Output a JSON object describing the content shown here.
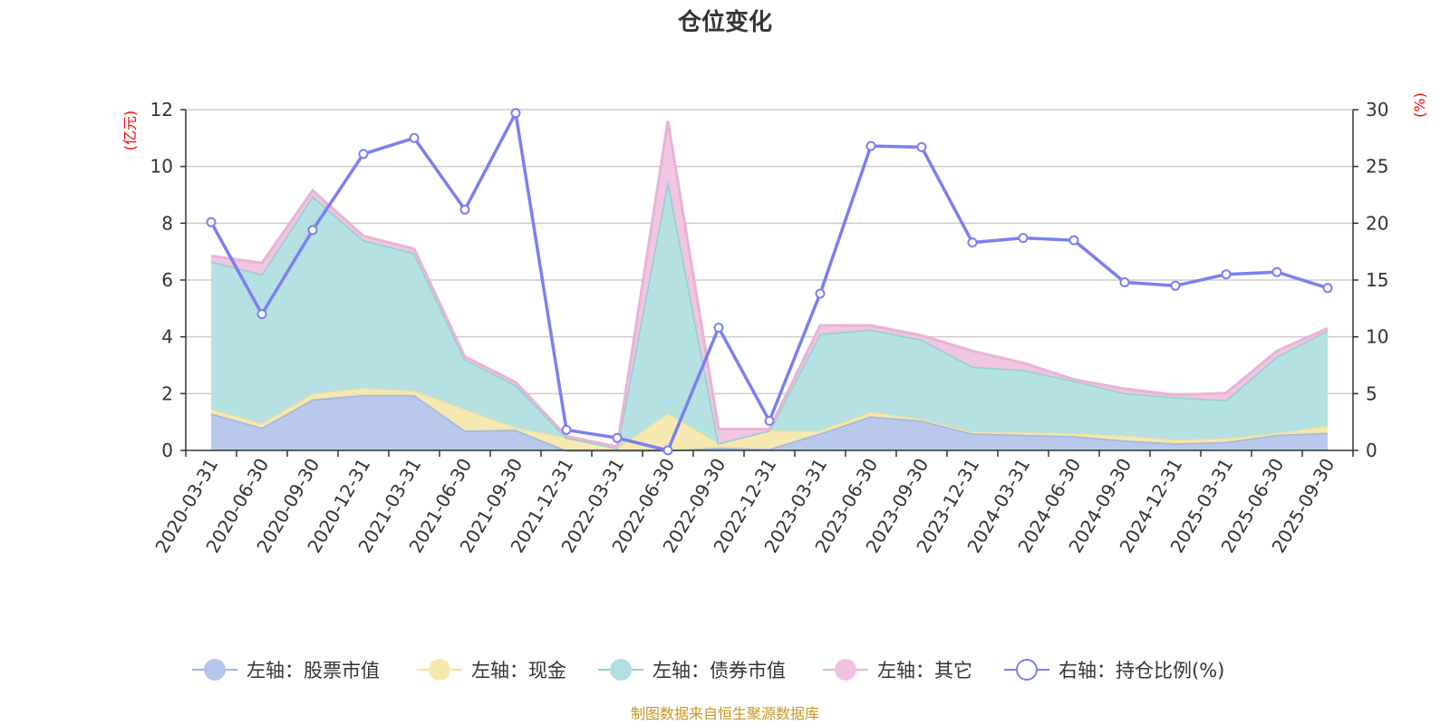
{
  "chart_data": {
    "type": "area",
    "title": "仓位变化",
    "left_unit": "(亿元)",
    "right_unit": "(%)",
    "categories": [
      "2020-03-31",
      "2020-06-30",
      "2020-09-30",
      "2020-12-31",
      "2021-03-31",
      "2021-06-30",
      "2021-09-30",
      "2021-12-31",
      "2022-03-31",
      "2022-06-30",
      "2022-09-30",
      "2022-12-31",
      "2023-03-31",
      "2023-06-30",
      "2023-09-30",
      "2023-12-31",
      "2024-03-31",
      "2024-06-30",
      "2024-09-30",
      "2024-12-31",
      "2025-03-31",
      "2025-06-30",
      "2025-09-30"
    ],
    "y_left": {
      "min": 0,
      "max": 12,
      "ticks": [
        "0",
        "2",
        "4",
        "6",
        "8",
        "10",
        "12"
      ]
    },
    "y_right": {
      "min": 0,
      "max": 30,
      "ticks": [
        "0",
        "5",
        "10",
        "15",
        "20",
        "25",
        "30"
      ]
    },
    "stacked_series": [
      {
        "name": "左轴：股票市值",
        "color": "#9db5e0",
        "fill": "#b4c5ea",
        "values": [
          1.3,
          0.8,
          1.8,
          1.95,
          1.95,
          0.7,
          0.72,
          0.0,
          0.0,
          0.0,
          0.1,
          0.05,
          0.6,
          1.2,
          1.05,
          0.6,
          0.55,
          0.5,
          0.35,
          0.25,
          0.3,
          0.55,
          0.62
        ]
      },
      {
        "name": "左轴：现金",
        "color": "#f5e39a",
        "fill": "#f7e8ae",
        "values": [
          0.15,
          0.15,
          0.2,
          0.25,
          0.15,
          0.75,
          0.08,
          0.45,
          0.08,
          1.3,
          0.15,
          0.65,
          0.1,
          0.15,
          0.05,
          0.05,
          0.08,
          0.1,
          0.17,
          0.12,
          0.12,
          0.05,
          0.25
        ]
      },
      {
        "name": "左轴：债券市值",
        "color": "#8fd1cf",
        "fill": "#b2dfe0",
        "values": [
          5.2,
          5.25,
          6.95,
          5.2,
          4.85,
          1.75,
          1.5,
          0.0,
          0.0,
          8.2,
          0.0,
          0.0,
          3.4,
          2.9,
          2.8,
          2.3,
          2.2,
          1.85,
          1.5,
          1.5,
          1.35,
          2.7,
          3.35
        ]
      },
      {
        "name": "左轴：其它",
        "color": "#e8b3d6",
        "fill": "#efc3e0",
        "values": [
          0.2,
          0.4,
          0.2,
          0.15,
          0.15,
          0.1,
          0.1,
          0.05,
          0.05,
          2.1,
          0.5,
          0.05,
          0.3,
          0.15,
          0.15,
          0.55,
          0.25,
          0.05,
          0.15,
          0.08,
          0.25,
          0.2,
          0.08
        ]
      }
    ],
    "line_series": {
      "name": "右轴：持仓比例(%)",
      "color": "#7b7ff0",
      "values": [
        20.1,
        12.0,
        19.4,
        26.1,
        27.5,
        21.2,
        29.7,
        1.8,
        1.1,
        0.0,
        10.8,
        2.6,
        13.8,
        26.8,
        26.7,
        18.3,
        18.7,
        18.5,
        14.8,
        14.5,
        15.5,
        15.7,
        14.3
      ]
    },
    "legend_position": "bottom-center",
    "source": "制图数据来自恒生聚源数据库"
  }
}
